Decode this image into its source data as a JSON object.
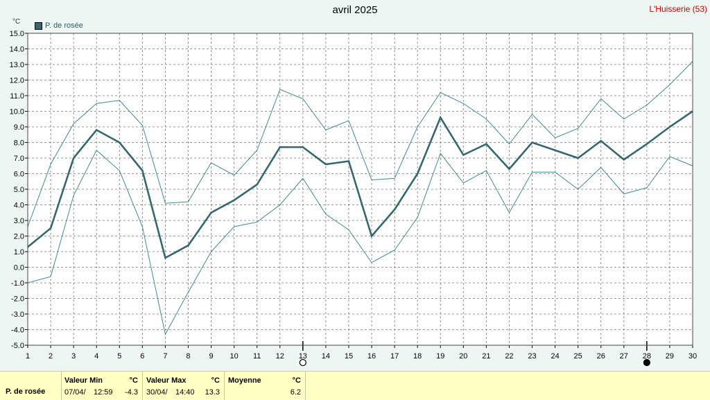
{
  "title": "avril 2025",
  "station": "L'Huisserie (53)",
  "unit_label": "°C",
  "legend_label": "P. de rosée",
  "colors": {
    "series": "#34676f",
    "envelope": "#3f8a8e",
    "grid": "#777777",
    "station": "#cc0000",
    "table_bg": "#ffffc4"
  },
  "chart_data": {
    "type": "line",
    "title": "avril 2025",
    "xlabel": "",
    "ylabel": "°C",
    "x": [
      1,
      2,
      3,
      4,
      5,
      6,
      7,
      8,
      9,
      10,
      11,
      12,
      13,
      14,
      15,
      16,
      17,
      18,
      19,
      20,
      21,
      22,
      23,
      24,
      25,
      26,
      27,
      28,
      29,
      30
    ],
    "xlim": [
      1,
      30
    ],
    "ylim": [
      -5,
      15
    ],
    "yticks": [
      -5,
      -4,
      -3,
      -2,
      -1,
      0,
      1,
      2,
      3,
      4,
      5,
      6,
      7,
      8,
      9,
      10,
      11,
      12,
      13,
      14,
      15
    ],
    "grid": true,
    "legend_position": "top-left",
    "moon_markers": [
      {
        "day": 13,
        "phase": "full"
      },
      {
        "day": 28,
        "phase": "new"
      }
    ],
    "series": [
      {
        "name": "P. de rosée",
        "role": "mean",
        "values": [
          1.3,
          2.5,
          7.0,
          8.8,
          8.0,
          6.2,
          0.6,
          1.4,
          3.5,
          4.3,
          5.3,
          7.7,
          7.7,
          6.6,
          6.8,
          2.0,
          3.7,
          6.0,
          9.6,
          7.2,
          7.9,
          6.3,
          8.0,
          7.5,
          7.0,
          8.1,
          6.9,
          7.9,
          9.0,
          10.0
        ]
      },
      {
        "role": "max",
        "values": [
          2.6,
          6.6,
          9.2,
          10.5,
          10.7,
          9.1,
          4.1,
          4.2,
          6.7,
          5.9,
          7.5,
          11.4,
          10.8,
          8.8,
          9.4,
          5.6,
          5.7,
          9.0,
          11.2,
          10.5,
          9.5,
          7.9,
          9.8,
          8.3,
          8.9,
          10.8,
          9.5,
          10.4,
          11.7,
          13.2
        ]
      },
      {
        "role": "min",
        "values": [
          -1.0,
          -0.6,
          4.6,
          7.5,
          6.2,
          2.6,
          -4.3,
          -1.6,
          1.0,
          2.6,
          2.9,
          4.0,
          5.7,
          3.4,
          2.4,
          0.3,
          1.1,
          3.2,
          7.3,
          5.4,
          6.2,
          3.5,
          6.1,
          6.1,
          5.0,
          6.4,
          4.7,
          5.1,
          7.1,
          6.5
        ]
      }
    ]
  },
  "stats_table": {
    "row_label": "P. de rosée",
    "min": {
      "header": "Valeur Min",
      "unit": "°C",
      "date": "07/04/",
      "time": "12:59",
      "value": "-4.3"
    },
    "max": {
      "header": "Valeur Max",
      "unit": "°C",
      "date": "30/04/",
      "time": "14:40",
      "value": "13.3"
    },
    "avg": {
      "header": "Moyenne",
      "unit": "°C",
      "value": "6.2"
    }
  }
}
